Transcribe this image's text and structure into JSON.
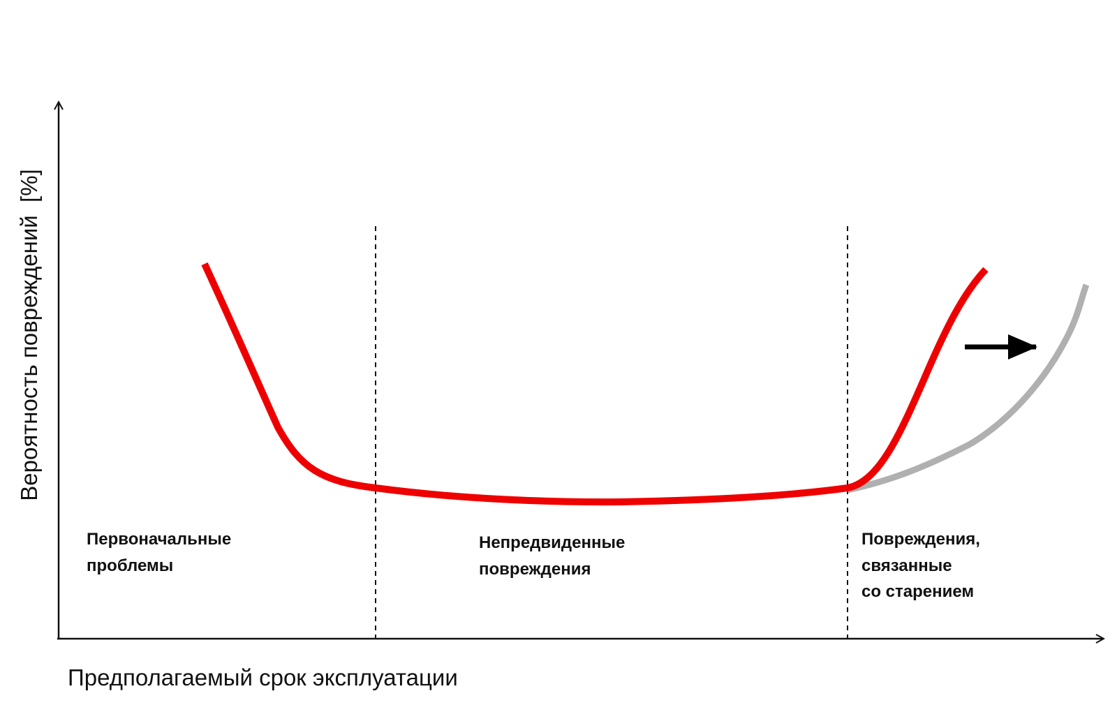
{
  "axes": {
    "y_label": "Вероятность повреждений  [%]",
    "x_label": "Предполагаемый срок эксплуатации"
  },
  "regions": [
    {
      "lines": [
        "Первоначальные",
        "проблемы"
      ]
    },
    {
      "lines": [
        "Непредвиденные",
        "повреждения"
      ]
    },
    {
      "lines": [
        "Повреждения,",
        "связанные",
        "со старением"
      ]
    }
  ]
}
